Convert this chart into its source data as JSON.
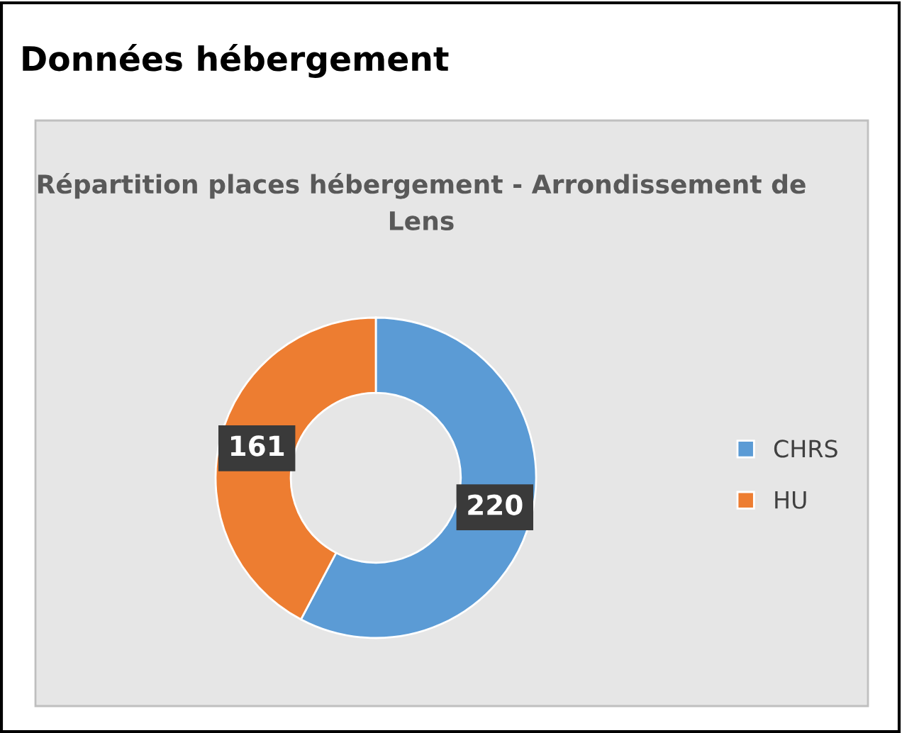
{
  "chart_data": {
    "type": "donut",
    "title": "Données hébergement",
    "subtitle": "Répartition places hébergement - Arrondissement de Lens",
    "categories": [
      "CHRS",
      "HU"
    ],
    "values": [
      220,
      161
    ],
    "colors": [
      "#5b9bd5",
      "#ed7d31"
    ],
    "data_labels": true,
    "legend": "right"
  }
}
